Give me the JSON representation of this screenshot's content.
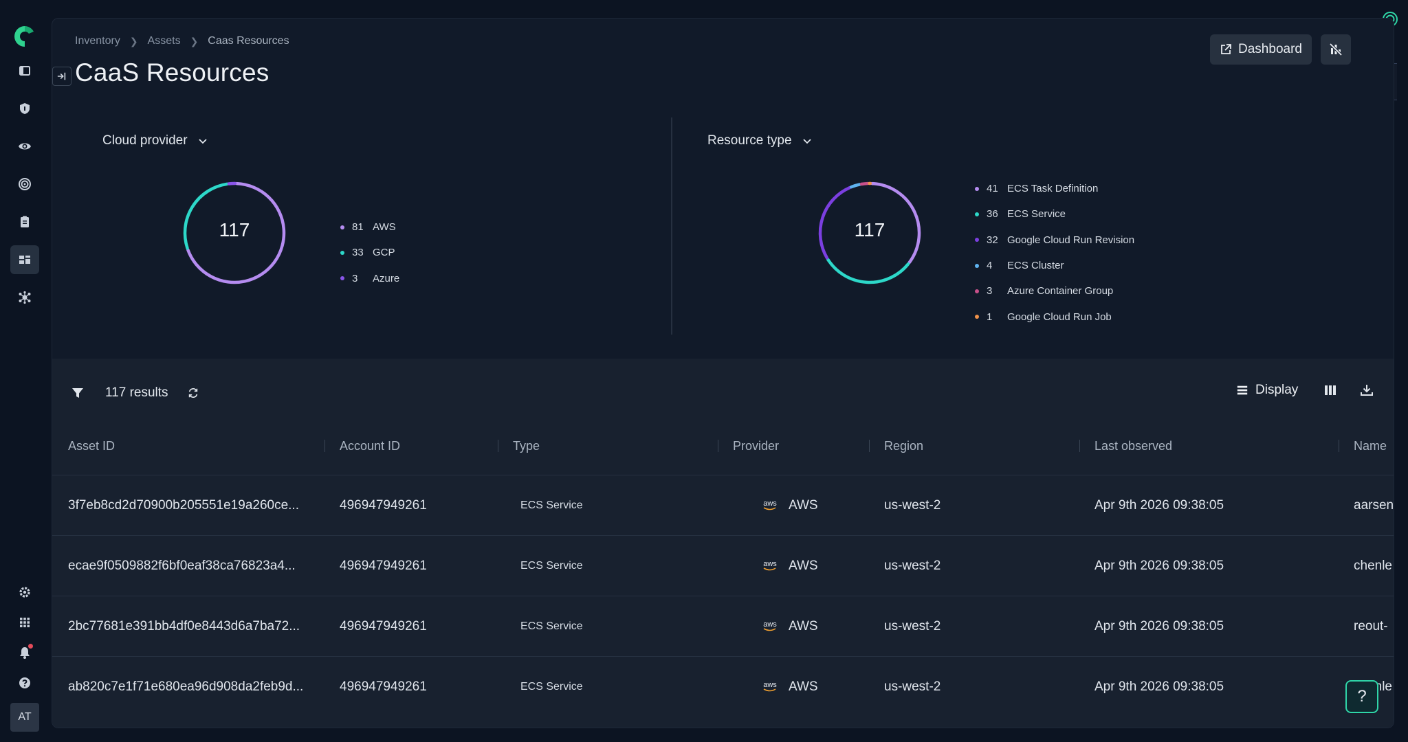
{
  "nav": {
    "items": [
      "inventory",
      "security",
      "visibility",
      "targets",
      "reports",
      "assets",
      "integrations"
    ],
    "active": "assets",
    "bottom": [
      "settings",
      "apps",
      "notifications",
      "help"
    ],
    "avatar_initials": "AT"
  },
  "breadcrumb": [
    "Inventory",
    "Assets",
    "Caas Resources"
  ],
  "page": {
    "title": "CaaS Resources",
    "dashboard_label": "Dashboard"
  },
  "side_tab_count": "1",
  "cards": {
    "cloud_provider": {
      "title": "Cloud provider",
      "total": "117",
      "legend": [
        {
          "count": "81",
          "label": "AWS",
          "color": "#b58cf0"
        },
        {
          "count": "33",
          "label": "GCP",
          "color": "#2dd8c9"
        },
        {
          "count": "3",
          "label": "Azure",
          "color": "#8a55e8"
        }
      ]
    },
    "resource_type": {
      "title": "Resource type",
      "total": "117",
      "legend": [
        {
          "count": "41",
          "label": "ECS Task Definition",
          "color": "#b58cf0"
        },
        {
          "count": "36",
          "label": "ECS Service",
          "color": "#2dd8c9"
        },
        {
          "count": "32",
          "label": "Google Cloud Run Revision",
          "color": "#7b3fe0"
        },
        {
          "count": "4",
          "label": "ECS Cluster",
          "color": "#5fb3f0"
        },
        {
          "count": "3",
          "label": "Azure Container Group",
          "color": "#c8508a"
        },
        {
          "count": "1",
          "label": "Google Cloud Run Job",
          "color": "#f0924a"
        }
      ]
    }
  },
  "chart_data": [
    {
      "type": "pie",
      "title": "Cloud provider",
      "categories": [
        "AWS",
        "GCP",
        "Azure"
      ],
      "values": [
        81,
        33,
        3
      ],
      "total": 117
    },
    {
      "type": "pie",
      "title": "Resource type",
      "categories": [
        "ECS Task Definition",
        "ECS Service",
        "Google Cloud Run Revision",
        "ECS Cluster",
        "Azure Container Group",
        "Google Cloud Run Job"
      ],
      "values": [
        41,
        36,
        32,
        4,
        3,
        1
      ],
      "total": 117
    }
  ],
  "table": {
    "results_label": "117 results",
    "display_label": "Display",
    "columns": [
      "Asset ID",
      "Account ID",
      "Type",
      "Provider",
      "Region",
      "Last observed",
      "Name"
    ],
    "rows": [
      {
        "asset_id": "3f7eb8cd2d70900b205551e19a260ce...",
        "account_id": "496947949261",
        "type": "ECS Service",
        "provider": "AWS",
        "region": "us-west-2",
        "last_observed": "Apr 9th 2026 09:38:05",
        "name": "aarsen"
      },
      {
        "asset_id": "ecae9f0509882f6bf0eaf38ca76823a4...",
        "account_id": "496947949261",
        "type": "ECS Service",
        "provider": "AWS",
        "region": "us-west-2",
        "last_observed": "Apr 9th 2026 09:38:05",
        "name": "chenle"
      },
      {
        "asset_id": "2bc77681e391bb4df0e8443d6a7ba72...",
        "account_id": "496947949261",
        "type": "ECS Service",
        "provider": "AWS",
        "region": "us-west-2",
        "last_observed": "Apr 9th 2026 09:38:05",
        "name": "reout-"
      },
      {
        "asset_id": "ab820c7e1f71e680ea96d908da2feb9d...",
        "account_id": "496947949261",
        "type": "ECS Service",
        "provider": "AWS",
        "region": "us-west-2",
        "last_observed": "Apr 9th 2026 09:38:05",
        "name": "chenle"
      }
    ],
    "aws_logo_text": "aws"
  },
  "help_label": "?"
}
